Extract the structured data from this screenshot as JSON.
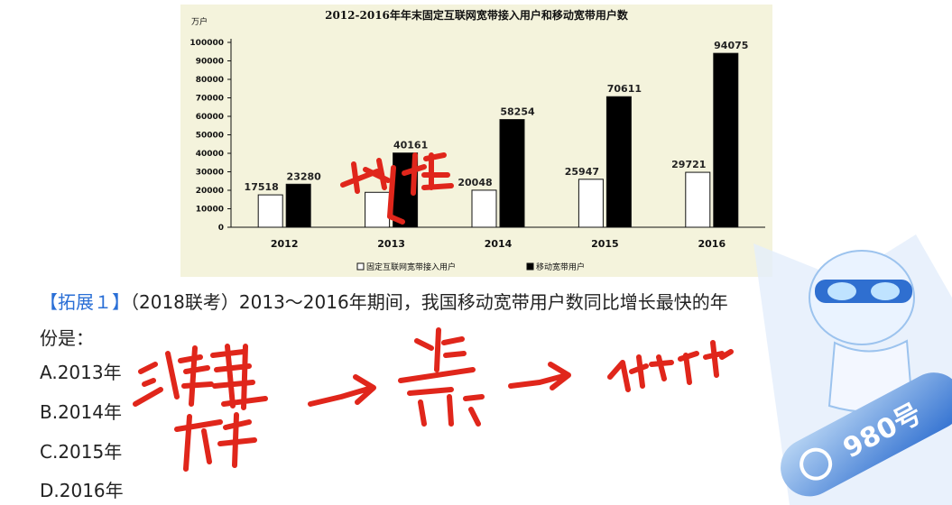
{
  "chart_data": {
    "type": "bar",
    "title": "2012-2016年年末固定互联网宽带接入用户和移动宽带用户数",
    "ylabel": "万户",
    "categories": [
      "2012",
      "2013",
      "2014",
      "2015",
      "2016"
    ],
    "series": [
      {
        "name": "固定互联网宽带接入用户",
        "values": [
          17518,
          18891,
          20048,
          25947,
          29721
        ],
        "labels": [
          "17518",
          "",
          "20048",
          "25947",
          "29721"
        ],
        "color": "#ffffff"
      },
      {
        "name": "移动宽带用户",
        "values": [
          23280,
          40161,
          58254,
          70611,
          94075
        ],
        "labels": [
          "23280",
          "40161",
          "58254",
          "70611",
          "94075"
        ],
        "color": "#000000"
      }
    ],
    "ylim": [
      0,
      100000
    ],
    "yticks": [
      "0",
      "10000",
      "20000",
      "30000",
      "40000",
      "50000",
      "60000",
      "70000",
      "80000",
      "90000",
      "100000"
    ],
    "grid": false,
    "legend": "bottom"
  },
  "question": {
    "tag": "【拓展１】",
    "line1": "（2018联考）2013～2016年期间，我国移动宽带用户数同比增长最快的年",
    "line2": "份是：",
    "options": [
      "A.2013年",
      "B.2014年",
      "C.2015年",
      "D.2016年"
    ]
  },
  "mascot": {
    "badge": "980号",
    "accent": "#5aa0e6"
  },
  "colors": {
    "ink": "#e0261b",
    "panel": "#f4f3dc",
    "accent": "#2a6fd6"
  }
}
